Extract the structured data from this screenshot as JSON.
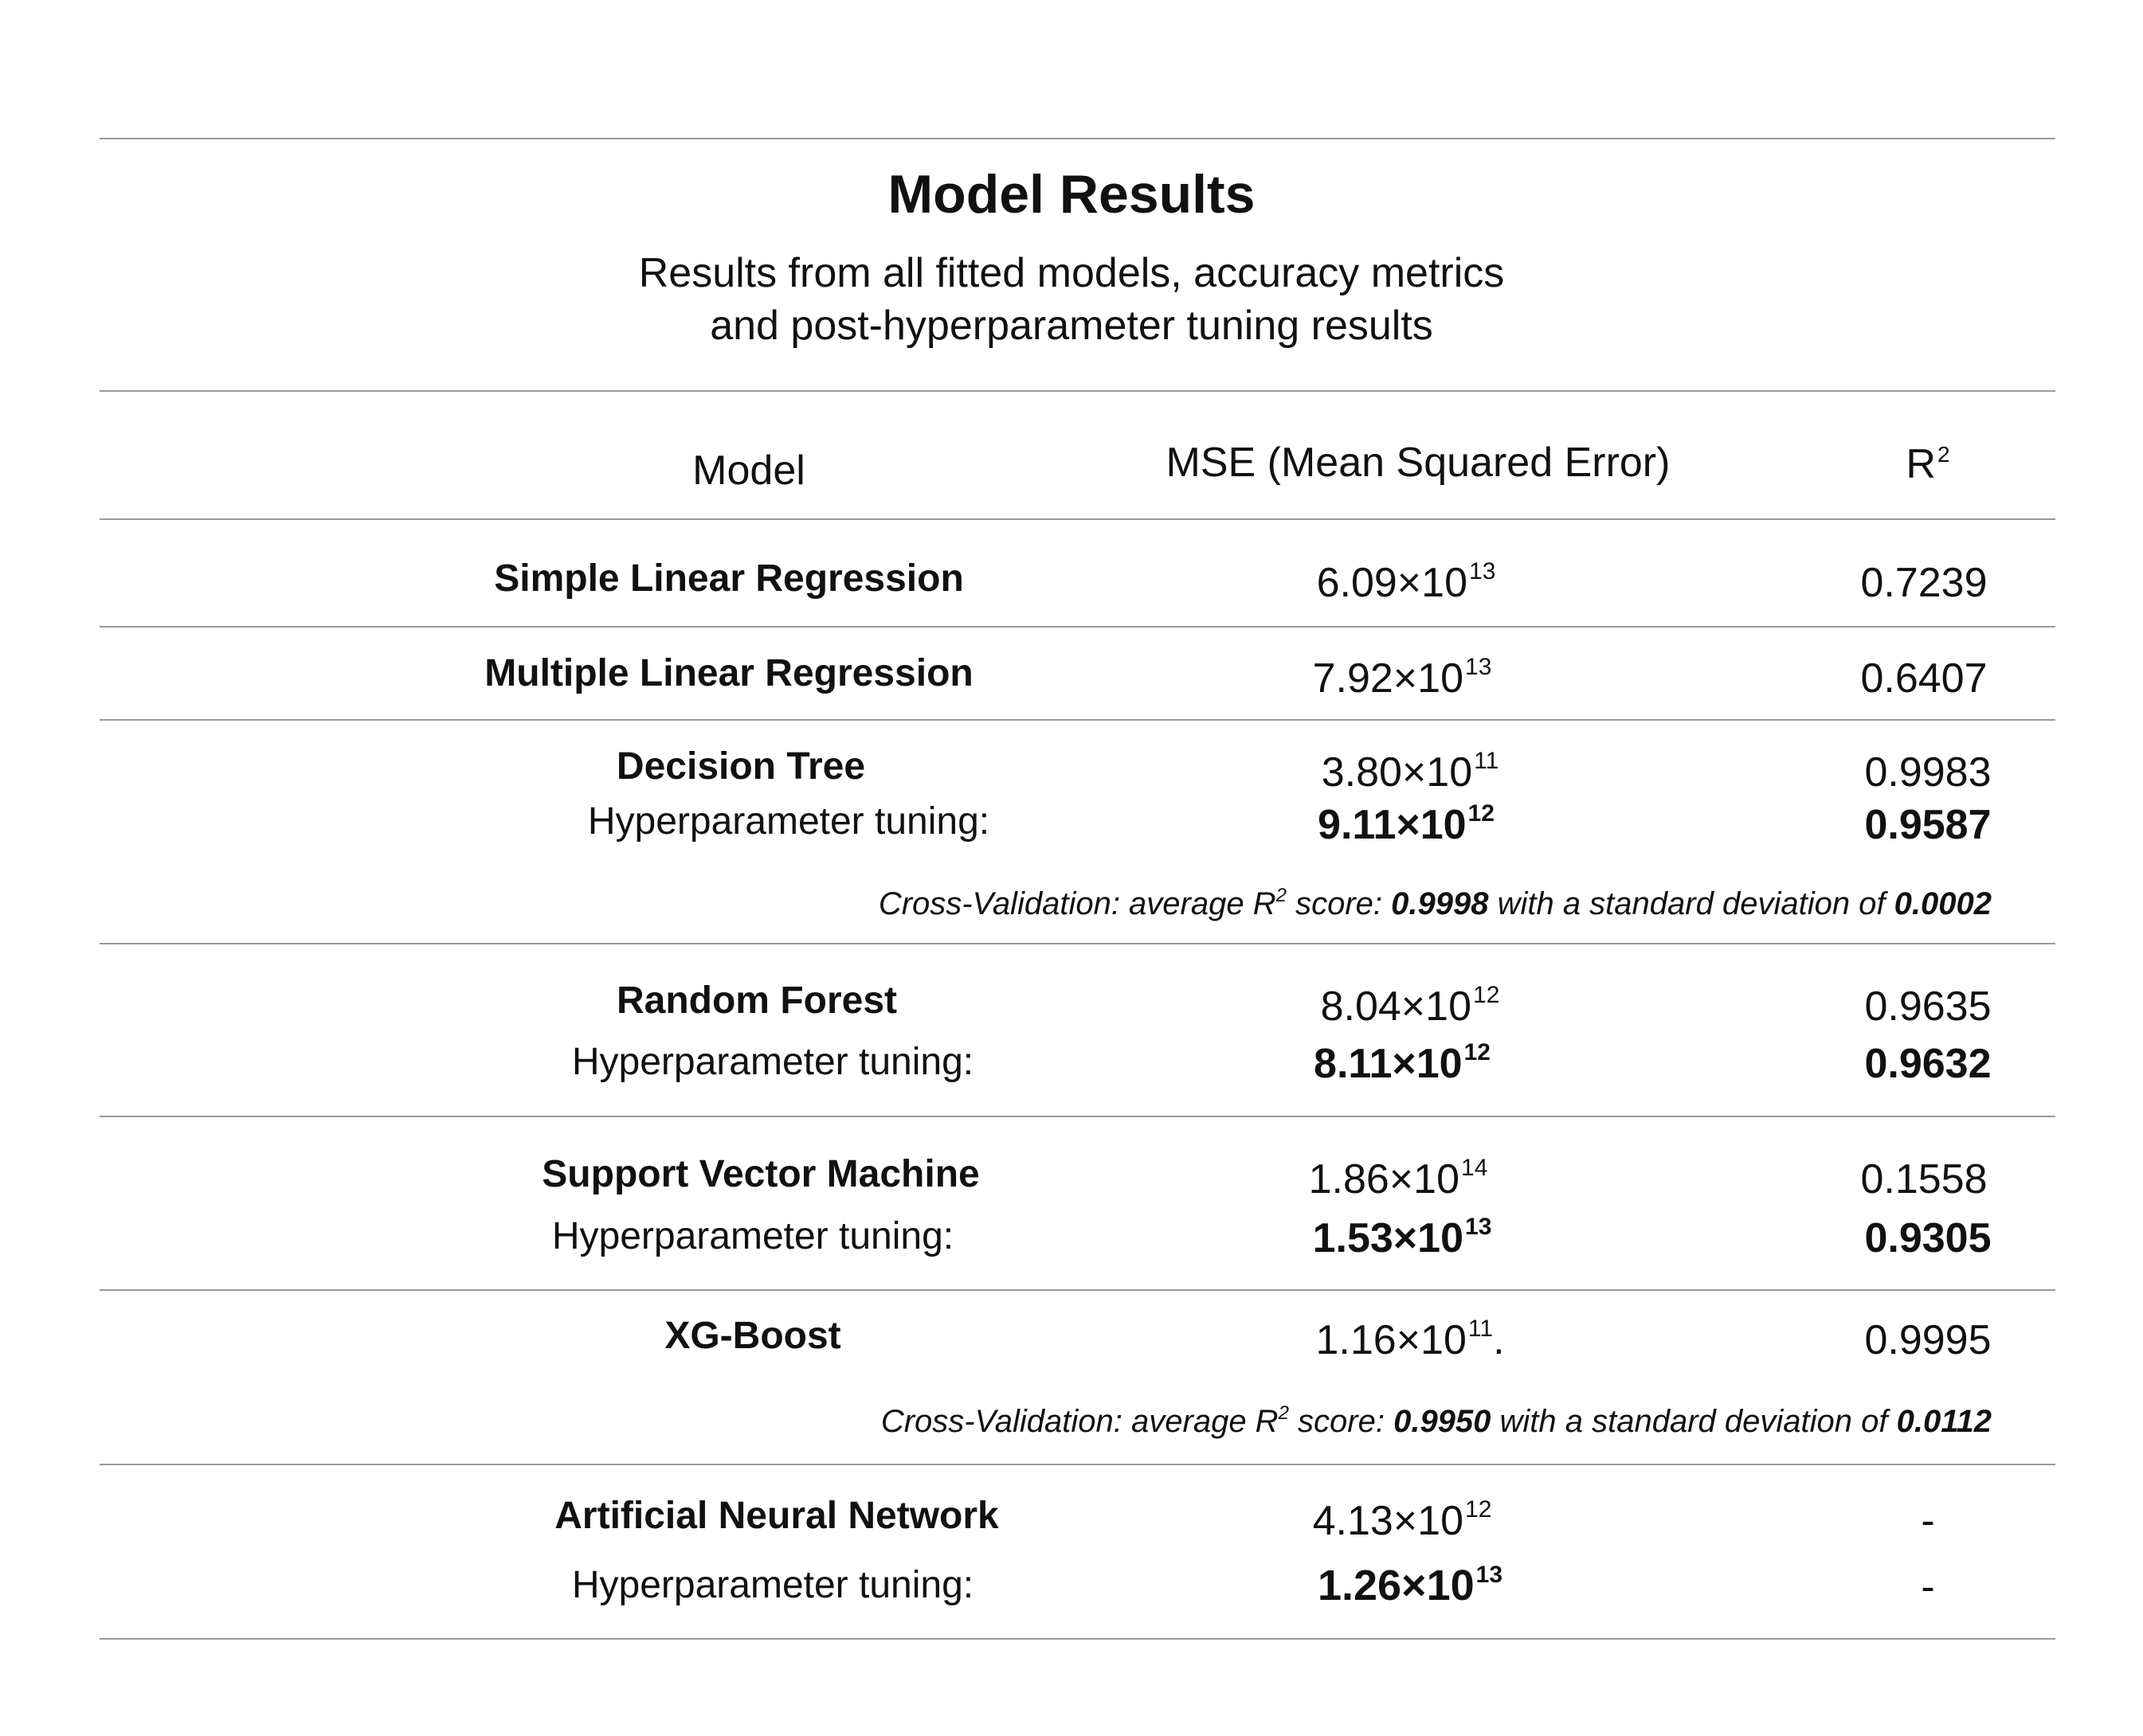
{
  "title": "Model Results",
  "subtitle_line1": "Results from all fitted models, accuracy metrics",
  "subtitle_line2": "and post-hyperparameter tuning results",
  "headers": {
    "model": "Model",
    "mse": "MSE (Mean Squared Error)",
    "r2_base": "R",
    "r2_sup": "2"
  },
  "rows": [
    {
      "model": "Simple Linear Regression",
      "mse": {
        "mantissa": "6.09×10",
        "exp": "13"
      },
      "r2": "0.7239"
    },
    {
      "model": "Multiple Linear Regression",
      "mse": {
        "mantissa": "7.92×10",
        "exp": "13"
      },
      "r2": "0.6407"
    },
    {
      "model": "Decision Tree",
      "mse": {
        "mantissa": "3.80×10",
        "exp": "11"
      },
      "r2": "0.9983",
      "tuning_label": "Hyperparameter tuning:",
      "tuning_mse": {
        "mantissa": "9.11×10",
        "exp": "12"
      },
      "tuning_r2": "0.9587",
      "cv": {
        "prefix": "Cross-Validation: average R",
        "sup": "2",
        "mid": " score: ",
        "mean": "0.9998",
        "mid2": " with a standard deviation of ",
        "std": "0.0002"
      }
    },
    {
      "model": "Random Forest",
      "mse": {
        "mantissa": "8.04×10",
        "exp": "12"
      },
      "r2": "0.9635",
      "tuning_label": "Hyperparameter tuning:",
      "tuning_mse": {
        "mantissa": "8.11×10",
        "exp": "12"
      },
      "tuning_r2": "0.9632"
    },
    {
      "model": "Support Vector Machine",
      "mse": {
        "mantissa": "1.86×10",
        "exp": "14"
      },
      "r2": "0.1558",
      "tuning_label": "Hyperparameter tuning:",
      "tuning_mse": {
        "mantissa": "1.53×10",
        "exp": "13"
      },
      "tuning_r2": "0.9305"
    },
    {
      "model": "XG-Boost",
      "mse": {
        "mantissa": "1.16×10",
        "exp": "11",
        "suffix": "."
      },
      "r2": "0.9995",
      "cv": {
        "prefix": "Cross-Validation: average R",
        "sup": "2",
        "mid": " score: ",
        "mean": "0.9950",
        "mid2": " with a standard deviation of ",
        "std": "0.0112"
      }
    },
    {
      "model": "Artificial Neural Network",
      "mse": {
        "mantissa": "4.13×10",
        "exp": "12"
      },
      "r2": "-",
      "tuning_label": "Hyperparameter tuning:",
      "tuning_mse": {
        "mantissa": "1.26×10",
        "exp": "13"
      },
      "tuning_r2": "-"
    }
  ]
}
